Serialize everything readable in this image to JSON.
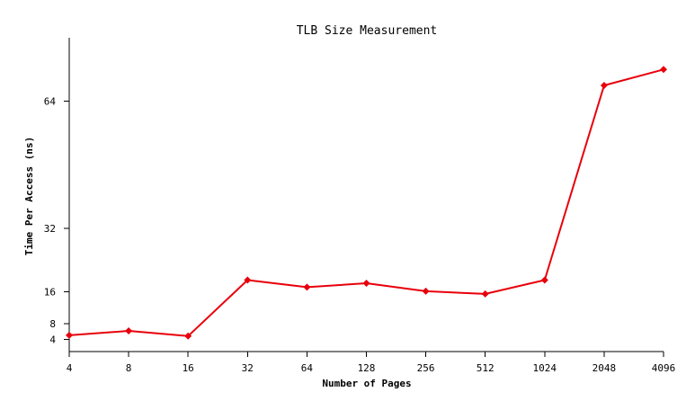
{
  "chart_data": {
    "type": "line",
    "title": "TLB Size Measurement",
    "xlabel": "Number of Pages",
    "ylabel": "Time Per Access (ns)",
    "categories": [
      "4",
      "8",
      "16",
      "32",
      "64",
      "128",
      "256",
      "512",
      "1024",
      "2048",
      "4096"
    ],
    "series": [
      {
        "values": [
          5.1,
          6.2,
          4.9,
          19.0,
          17.2,
          18.2,
          16.2,
          15.5,
          19.0,
          68.0,
          72.0
        ],
        "color": "#e8000b",
        "marker": "diamond"
      }
    ],
    "yticks": [
      4,
      8,
      16,
      32,
      64
    ],
    "ylim": [
      1,
      80
    ],
    "grid": false,
    "legend": "none"
  }
}
